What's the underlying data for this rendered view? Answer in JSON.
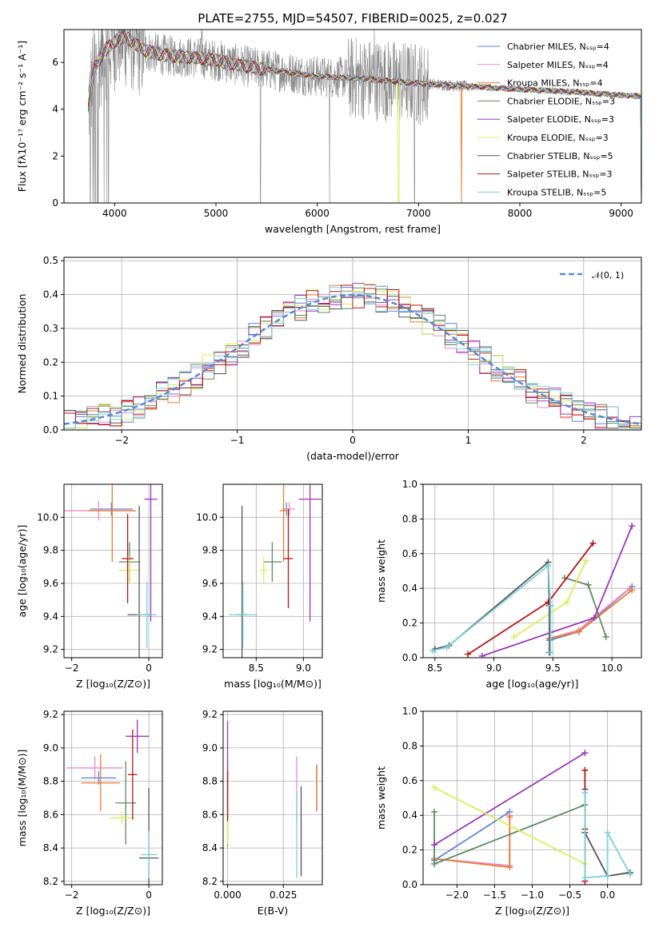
{
  "colors": {
    "chabrier_miles": "#5b86d6",
    "salpeter_miles": "#e98bc8",
    "kroupa_miles": "#e87b34",
    "chabrier_elodie": "#5f8a64",
    "salpeter_elodie": "#9a39b6",
    "kroupa_elodie": "#d6ee5c",
    "chabrier_stelib": "#555555",
    "salpeter_stelib": "#b01818",
    "kroupa_stelib": "#7dd0dc",
    "observed_spectrum": "#888888",
    "gaussian": "#5b86d6"
  },
  "chart_data": [
    {
      "id": "spectrum",
      "type": "line",
      "title": "PLATE=2755, MJD=54507, FIBERID=0025, z=0.027",
      "xlabel": "wavelength [Angstrom, rest frame]",
      "ylabel": "Flux [fλ10⁻¹⁷ erg cm⁻² s⁻¹ A⁻¹]",
      "xlim": [
        3500,
        9200
      ],
      "ylim": [
        0,
        7.4
      ],
      "xticks": [
        "4000",
        "5000",
        "6000",
        "7000",
        "8000",
        "9000"
      ],
      "yticks": [
        "0",
        "2",
        "4",
        "6"
      ],
      "grid": false,
      "legend_position": "top-right",
      "legend": [
        "Chabrier MILES, Nₛₛₚ=4",
        "Salpeter MILES, Nₛₛₚ=4",
        "Kroupa MILES, Nₛₛₚ=4",
        "Chabrier ELODIE, Nₛₛₚ=3",
        "Salpeter ELODIE, Nₛₛₚ=3",
        "Kroupa ELODIE, Nₛₛₚ=3",
        "Chabrier STELIB, Nₛₛₚ=5",
        "Salpeter STELIB, Nₛₛₚ=3",
        "Kroupa STELIB, Nₛₛₚ=5"
      ],
      "legend_colors": [
        "#5b86d6",
        "#e98bc8",
        "#e87b34",
        "#5f8a64",
        "#9a39b6",
        "#d6ee5c",
        "#555555",
        "#b01818",
        "#7dd0dc"
      ],
      "model_continuum": {
        "x": [
          3740,
          3800,
          3900,
          4000,
          4100,
          4200,
          4300,
          4500,
          4800,
          5000,
          5200,
          5500,
          6000,
          6500,
          7000,
          7400,
          7800,
          8000,
          8500,
          9000,
          9200
        ],
        "y": [
          4.1,
          5.8,
          6.5,
          6.9,
          7.1,
          6.8,
          6.5,
          6.3,
          6.2,
          6.1,
          5.9,
          5.7,
          5.4,
          5.3,
          5.1,
          5.0,
          4.9,
          4.85,
          4.75,
          4.6,
          4.55
        ]
      }
    },
    {
      "id": "residuals",
      "type": "line",
      "xlabel": "(data-model)/error",
      "ylabel": "Normed distribution",
      "xlim": [
        -2.5,
        2.5
      ],
      "ylim": [
        0,
        0.51
      ],
      "xticks": [
        "−2",
        "−1",
        "0",
        "1",
        "2"
      ],
      "yticks": [
        "0.0",
        "0.1",
        "0.2",
        "0.3",
        "0.4",
        "0.5"
      ],
      "grid": true,
      "legend_position": "top-right",
      "legend": [
        "𝒩(0, 1)"
      ],
      "series": [
        {
          "name": "𝒩(0, 1)",
          "style": "dashed",
          "function": "normal(0,1)"
        }
      ],
      "bin_width": 0.1,
      "histograms_note": "Nine step histograms, one per model, all closely following N(0,1) with scatter of roughly ±0.04."
    },
    {
      "id": "age_vs_Z",
      "type": "scatter",
      "xlabel": "Z [log₁₀(Z/Z⊙)]",
      "ylabel": "age  [log₁₀(age/yr)]",
      "xlim": [
        -2.2,
        0.35
      ],
      "ylim": [
        9.15,
        10.2
      ],
      "xticks": [
        "−2",
        "0"
      ],
      "yticks": [
        "9.2",
        "9.4",
        "9.6",
        "9.8",
        "10.0"
      ],
      "grid": true,
      "points": [
        {
          "x": -0.97,
          "y": 10.05,
          "xerr": 0.55,
          "yerr": 0.04
        },
        {
          "x": -1.3,
          "y": 10.04,
          "xerr": 0.9,
          "yerr": 0.06
        },
        {
          "x": -0.95,
          "y": 10.04,
          "xerr": 0.62,
          "yerr": 0.31
        },
        {
          "x": -0.5,
          "y": 9.73,
          "xerr": 0.28,
          "yerr": 0.12
        },
        {
          "x": 0.05,
          "y": 10.11,
          "xerr": 0.17,
          "yerr": 0.74
        },
        {
          "x": -0.5,
          "y": 9.68,
          "xerr": 0.28,
          "yerr": 0.08
        },
        {
          "x": -0.25,
          "y": 9.41,
          "xerr": 0.3,
          "yerr": 0.66
        },
        {
          "x": -0.55,
          "y": 9.75,
          "xerr": 0.15,
          "yerr": 0.27
        },
        {
          "x": -0.05,
          "y": 9.41,
          "xerr": 0.25,
          "yerr": 0.2
        }
      ]
    },
    {
      "id": "age_vs_mass",
      "type": "scatter",
      "xlabel": "mass [log₁₀(M/M⊙)]",
      "ylabel": "",
      "xlim": [
        8.15,
        9.2
      ],
      "ylim": [
        9.15,
        10.2
      ],
      "xticks": [
        "8.5",
        "9.0"
      ],
      "yticks": [
        "9.2",
        "9.4",
        "9.6",
        "9.8",
        "10.0"
      ],
      "grid": true,
      "points": [
        {
          "x": 8.82,
          "y": 10.05,
          "xerr": 0.04,
          "yerr": 0.04
        },
        {
          "x": 8.85,
          "y": 10.05,
          "xerr": 0.06,
          "yerr": 0.04
        },
        {
          "x": 8.79,
          "y": 10.04,
          "xerr": 0.04,
          "yerr": 0.31
        },
        {
          "x": 8.67,
          "y": 9.73,
          "xerr": 0.1,
          "yerr": 0.12
        },
        {
          "x": 9.07,
          "y": 10.11,
          "xerr": 0.12,
          "yerr": 0.74
        },
        {
          "x": 8.58,
          "y": 9.68,
          "xerr": 0.04,
          "yerr": 0.08
        },
        {
          "x": 8.35,
          "y": 9.41,
          "xerr": 0.05,
          "yerr": 0.66
        },
        {
          "x": 8.84,
          "y": 9.75,
          "xerr": 0.05,
          "yerr": 0.3
        },
        {
          "x": 8.36,
          "y": 9.41,
          "xerr": 0.15,
          "yerr": 0.2
        }
      ]
    },
    {
      "id": "weight_vs_age",
      "type": "line",
      "xlabel": "age  [log₁₀(age/yr)]",
      "ylabel": "mass weight",
      "xlim": [
        8.4,
        10.25
      ],
      "ylim": [
        0,
        1.0
      ],
      "xticks": [
        "8.5",
        "9.0",
        "9.5",
        "10.0"
      ],
      "yticks": [
        "0.0",
        "0.2",
        "0.4",
        "0.6",
        "0.8",
        "1.0"
      ],
      "grid": true,
      "series": [
        {
          "name": "Chabrier MILES",
          "x": [
            9.47,
            9.72,
            10.17
          ],
          "y": [
            0.1,
            0.15,
            0.41
          ]
        },
        {
          "name": "Salpeter MILES",
          "x": [
            9.47,
            9.72,
            10.15
          ],
          "y": [
            0.11,
            0.16,
            0.4
          ]
        },
        {
          "name": "Kroupa MILES",
          "x": [
            9.47,
            9.72,
            10.17
          ],
          "y": [
            0.11,
            0.15,
            0.39
          ]
        },
        {
          "name": "Chabrier ELODIE",
          "x": [
            9.6,
            9.8,
            9.95
          ],
          "y": [
            0.46,
            0.42,
            0.12
          ]
        },
        {
          "name": "Salpeter ELODIE",
          "x": [
            8.9,
            9.85,
            10.17
          ],
          "y": [
            0.01,
            0.23,
            0.76
          ]
        },
        {
          "name": "Kroupa ELODIE",
          "x": [
            9.17,
            9.62,
            9.78
          ],
          "y": [
            0.12,
            0.32,
            0.56
          ]
        },
        {
          "name": "Chabrier STELIB",
          "x": [
            8.5,
            8.62,
            9.46,
            9.47,
            9.47
          ],
          "y": [
            0.05,
            0.07,
            0.55,
            0.3,
            0.03
          ]
        },
        {
          "name": "Salpeter STELIB",
          "x": [
            8.78,
            9.46,
            9.84
          ],
          "y": [
            0.02,
            0.32,
            0.66
          ]
        },
        {
          "name": "Kroupa STELIB",
          "x": [
            8.48,
            8.6,
            9.46,
            9.48,
            9.48
          ],
          "y": [
            0.04,
            0.06,
            0.53,
            0.3,
            0.03
          ]
        }
      ]
    },
    {
      "id": "mass_vs_Z",
      "type": "scatter",
      "xlabel": "Z [log₁₀(Z/Z⊙)]",
      "ylabel": "mass [log₁₀(M/M⊙)]",
      "xlim": [
        -2.2,
        0.35
      ],
      "ylim": [
        8.18,
        9.22
      ],
      "xticks": [
        "−2",
        "0"
      ],
      "yticks": [
        "8.2",
        "8.4",
        "8.6",
        "8.8",
        "9.0",
        "9.2"
      ],
      "grid": true,
      "points": [
        {
          "x": -1.3,
          "y": 8.82,
          "xerr": 0.45,
          "yerr": 0.04
        },
        {
          "x": -1.4,
          "y": 8.88,
          "xerr": 0.73,
          "yerr": 0.07
        },
        {
          "x": -1.25,
          "y": 8.79,
          "xerr": 0.5,
          "yerr": 0.17
        },
        {
          "x": -0.6,
          "y": 8.67,
          "xerr": 0.27,
          "yerr": 0.25
        },
        {
          "x": -0.3,
          "y": 9.07,
          "xerr": 0.3,
          "yerr": 0.1
        },
        {
          "x": -0.7,
          "y": 8.58,
          "xerr": 0.3,
          "yerr": 0.04
        },
        {
          "x": 0.0,
          "y": 8.34,
          "xerr": 0.25,
          "yerr": 0.42
        },
        {
          "x": -0.42,
          "y": 8.84,
          "xerr": 0.12,
          "yerr": 0.27
        },
        {
          "x": 0.0,
          "y": 8.36,
          "xerr": 0.2,
          "yerr": 0.14
        }
      ]
    },
    {
      "id": "mass_vs_EBV",
      "type": "scatter",
      "xlabel": "E(B-V)",
      "ylabel": "",
      "xlim": [
        -0.002,
        0.0425
      ],
      "ylim": [
        8.18,
        9.22
      ],
      "xticks": [
        "0.000",
        "0.025"
      ],
      "yticks": [
        "8.2",
        "8.4",
        "8.6",
        "8.8",
        "9.0",
        "9.2"
      ],
      "grid": true,
      "points": [
        {
          "x": 0.04,
          "y": 8.76,
          "xerr": 0,
          "yerr": 0.14
        },
        {
          "x": 0.031,
          "y": 8.75,
          "xerr": 0,
          "yerr": 0.2
        },
        {
          "x": 0.04,
          "y": 8.76,
          "xerr": 0,
          "yerr": 0.14
        },
        {
          "x": 0.0,
          "y": 8.66,
          "xerr": 0,
          "yerr": 0.25
        },
        {
          "x": 0.0,
          "y": 8.86,
          "xerr": 0,
          "yerr": 0.3
        },
        {
          "x": 0.0,
          "y": 8.58,
          "xerr": 0,
          "yerr": 0.16
        },
        {
          "x": 0.033,
          "y": 8.5,
          "xerr": 0,
          "yerr": 0.27
        },
        {
          "x": 0.0,
          "y": 8.71,
          "xerr": 0,
          "yerr": 0.15
        },
        {
          "x": 0.031,
          "y": 8.48,
          "xerr": 0,
          "yerr": 0.26
        }
      ]
    },
    {
      "id": "weight_vs_Z",
      "type": "line",
      "xlabel": "Z [log₁₀(Z/Z⊙)]",
      "ylabel": "mass weight",
      "xlim": [
        -2.45,
        0.45
      ],
      "ylim": [
        0,
        1.0
      ],
      "xticks": [
        "−2.0",
        "−1.5",
        "−1.0",
        "−0.5",
        "0.0"
      ],
      "yticks": [
        "0.0",
        "0.2",
        "0.4",
        "0.6",
        "0.8",
        "1.0"
      ],
      "grid": true,
      "series": [
        {
          "name": "Chabrier MILES",
          "x": [
            -2.3,
            -1.3
          ],
          "y": [
            0.14,
            0.42
          ]
        },
        {
          "name": "Salpeter MILES",
          "x": [
            -2.3,
            -1.3,
            -1.3
          ],
          "y": [
            0.15,
            0.11,
            0.4
          ]
        },
        {
          "name": "Kroupa MILES",
          "x": [
            -2.3,
            -1.3,
            -1.3
          ],
          "y": [
            0.15,
            0.1,
            0.39
          ]
        },
        {
          "name": "Chabrier ELODIE",
          "x": [
            -2.3,
            -2.3,
            -0.3
          ],
          "y": [
            0.42,
            0.12,
            0.46
          ]
        },
        {
          "name": "Salpeter ELODIE",
          "x": [
            -2.3,
            -0.3
          ],
          "y": [
            0.23,
            0.76
          ]
        },
        {
          "name": "Kroupa ELODIE",
          "x": [
            -2.3,
            -0.3
          ],
          "y": [
            0.56,
            0.12
          ]
        },
        {
          "name": "Chabrier STELIB",
          "x": [
            -0.3,
            -0.3,
            0.0,
            0.3
          ],
          "y": [
            0.55,
            0.3,
            0.05,
            0.07
          ]
        },
        {
          "name": "Salpeter STELIB",
          "x": [
            -0.3,
            -0.3,
            -0.3
          ],
          "y": [
            0.66,
            0.32,
            0.02
          ]
        },
        {
          "name": "Kroupa STELIB",
          "x": [
            -0.3,
            -0.3,
            0.0,
            0.0,
            0.3
          ],
          "y": [
            0.53,
            0.04,
            0.05,
            0.3,
            0.06
          ]
        }
      ]
    }
  ]
}
